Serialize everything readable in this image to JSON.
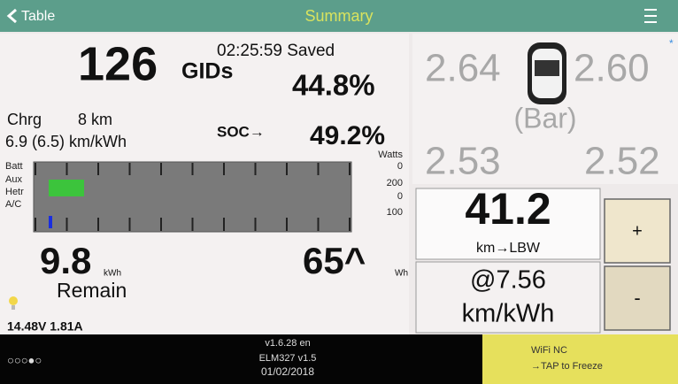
{
  "header": {
    "back": "Table",
    "title": "Summary"
  },
  "left": {
    "gids_value": "126",
    "time_saved": "02:25:59 Saved",
    "gids_label": "GIDs",
    "gids_percent": "44.8%",
    "chrg_label": "Chrg",
    "chrg_range": "8 km",
    "efficiency": "6.9 (6.5) km/kWh",
    "soc_label": "SOC→",
    "soc_value": "49.2%",
    "gauge": {
      "unit": "Watts",
      "rows": [
        "Batt",
        "Aux",
        "Hetr",
        "A/C"
      ],
      "readings": [
        "0",
        "200",
        "0",
        "100"
      ]
    },
    "remain_value": "9.8",
    "remain_unit": "kWh",
    "remain_label": "Remain",
    "used_value": "65^",
    "used_unit": "Wh",
    "voltage": "14.48V 1.81A"
  },
  "right": {
    "tires": {
      "front_left": "2.64",
      "front_right": "2.60",
      "marker": "*",
      "unit": "(Bar)",
      "rear_left": "2.53",
      "rear_right": "2.52"
    },
    "lbw_value": "41.2",
    "lbw_label": "km→LBW",
    "rate_value": "@7.56",
    "rate_unit": "km/kWh",
    "plus": "+",
    "minus": "-"
  },
  "footer": {
    "pages": "○○○●○",
    "version": [
      "v1.6.28 en",
      "ELM327 v1.5",
      "01/02/2018"
    ],
    "wifi": [
      "WiFi NC",
      "→TAP to Freeze"
    ]
  }
}
